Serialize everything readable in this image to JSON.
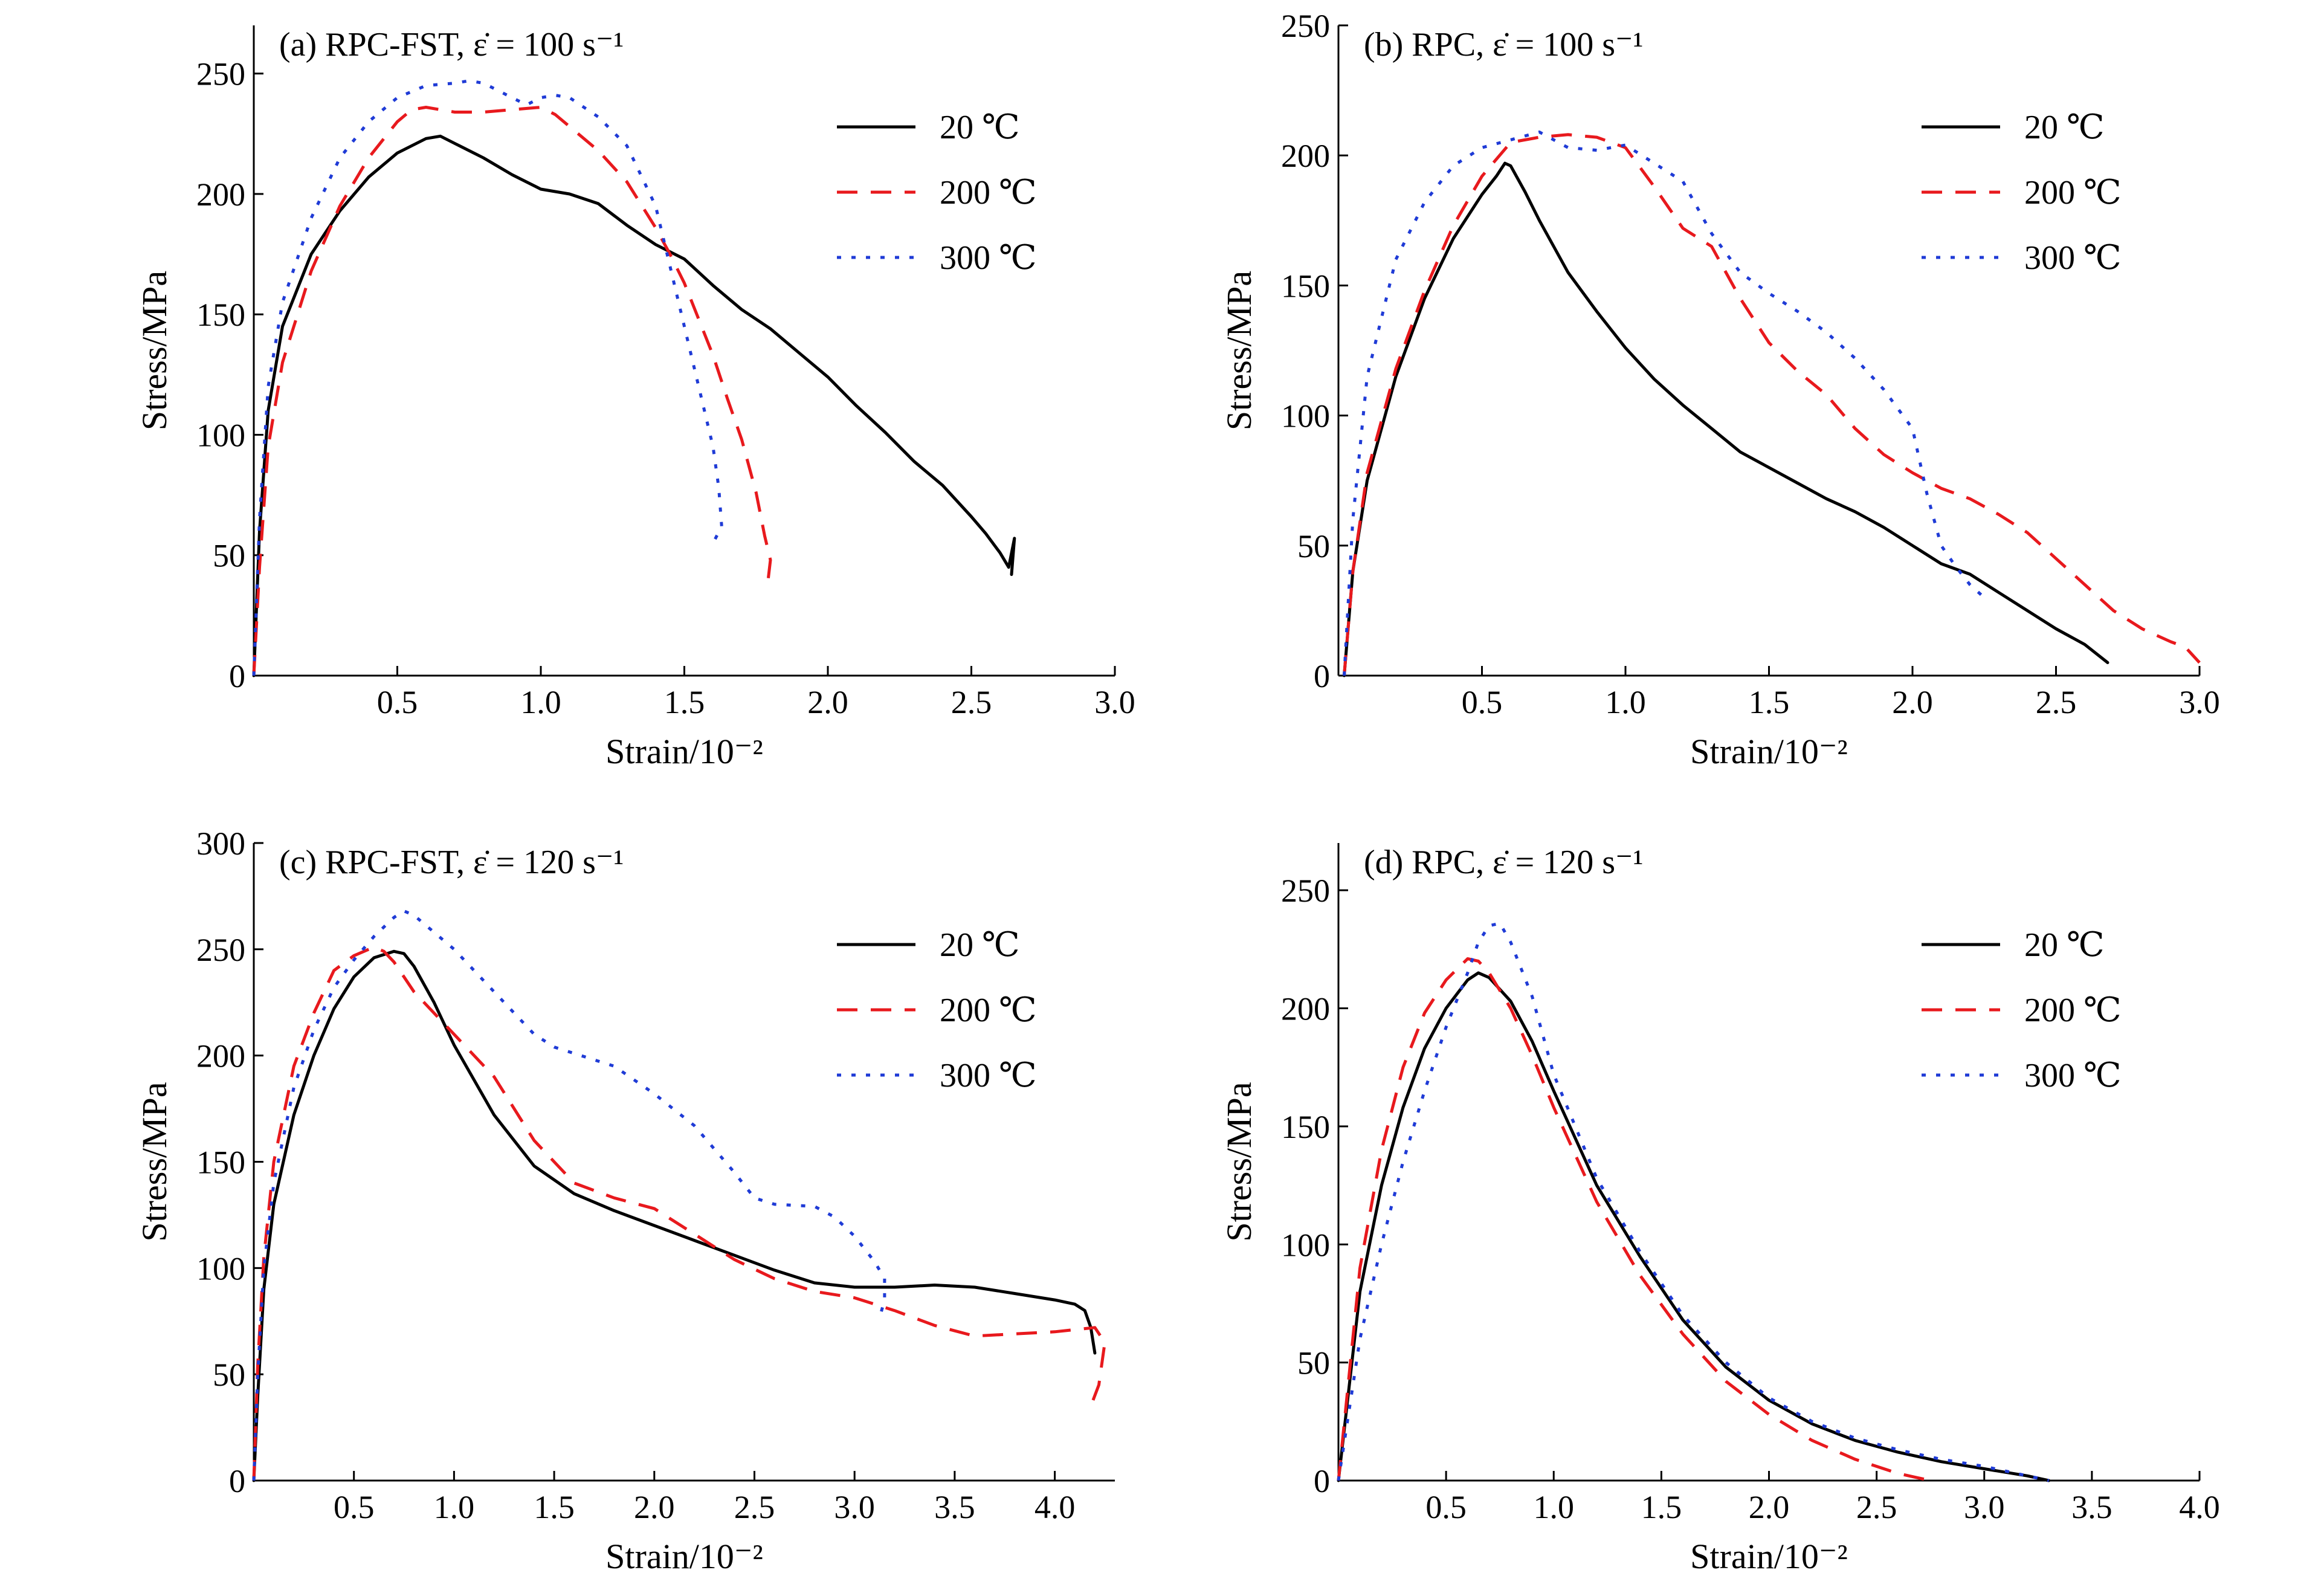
{
  "chart_data": [
    {
      "id": "a",
      "type": "line",
      "title": "(a) RPC-FST, ε̇ = 100 s⁻¹",
      "xlabel": "Strain/10⁻²",
      "ylabel": "Stress/MPa",
      "xlim": [
        0,
        3.0
      ],
      "ylim": [
        0,
        270
      ],
      "xticks": [
        0.5,
        1.0,
        1.5,
        2.0,
        2.5,
        3.0
      ],
      "xtick_labels": [
        "0.5",
        "1.0",
        "1.5",
        "2.0",
        "2.5",
        "3.0"
      ],
      "yticks": [
        0,
        50,
        100,
        150,
        200,
        250
      ],
      "ytick_labels": [
        "0",
        "50",
        "100",
        "150",
        "200",
        "250"
      ],
      "legend_position": "top-right",
      "series": [
        {
          "name": "20 ℃",
          "color": "#000000",
          "dash": "solid",
          "x": [
            0,
            0.02,
            0.05,
            0.1,
            0.2,
            0.3,
            0.4,
            0.5,
            0.6,
            0.65,
            0.7,
            0.8,
            0.9,
            1.0,
            1.1,
            1.2,
            1.3,
            1.4,
            1.5,
            1.6,
            1.7,
            1.8,
            1.9,
            2.0,
            2.1,
            2.2,
            2.3,
            2.4,
            2.5,
            2.55,
            2.6,
            2.63,
            2.65,
            2.64
          ],
          "y": [
            0,
            60,
            110,
            145,
            175,
            193,
            207,
            217,
            223,
            224,
            221,
            215,
            208,
            202,
            200,
            196,
            187,
            179,
            173,
            162,
            152,
            144,
            134,
            124,
            112,
            101,
            89,
            79,
            66,
            59,
            51,
            45,
            57,
            42
          ]
        },
        {
          "name": "200 ℃",
          "color": "#e8191d",
          "dash": "dashed",
          "x": [
            0,
            0.02,
            0.05,
            0.1,
            0.2,
            0.3,
            0.4,
            0.5,
            0.55,
            0.6,
            0.7,
            0.8,
            0.9,
            1.0,
            1.05,
            1.1,
            1.2,
            1.3,
            1.4,
            1.45,
            1.5,
            1.55,
            1.6,
            1.65,
            1.7,
            1.75,
            1.78,
            1.8,
            1.79
          ],
          "y": [
            0,
            45,
            95,
            130,
            168,
            195,
            215,
            230,
            235,
            236,
            234,
            234,
            235,
            236,
            233,
            228,
            218,
            205,
            186,
            175,
            163,
            148,
            133,
            115,
            98,
            76,
            58,
            48,
            38
          ]
        },
        {
          "name": "300 ℃",
          "color": "#1f3bd6",
          "dash": "dotted",
          "x": [
            0,
            0.02,
            0.05,
            0.1,
            0.2,
            0.3,
            0.4,
            0.5,
            0.6,
            0.7,
            0.75,
            0.8,
            0.9,
            0.95,
            1.0,
            1.05,
            1.1,
            1.2,
            1.3,
            1.4,
            1.45,
            1.5,
            1.55,
            1.6,
            1.62,
            1.63,
            1.6
          ],
          "y": [
            0,
            65,
            120,
            155,
            190,
            215,
            230,
            240,
            245,
            246,
            247,
            246,
            240,
            237,
            240,
            241,
            240,
            232,
            220,
            195,
            170,
            145,
            120,
            95,
            78,
            62,
            55
          ]
        }
      ]
    },
    {
      "id": "b",
      "type": "line",
      "title": "(b) RPC, ε̇ = 100 s⁻¹",
      "xlabel": "Strain/10⁻²",
      "ylabel": "Stress/MPa",
      "xlim": [
        0,
        3.0
      ],
      "ylim": [
        0,
        250
      ],
      "xticks": [
        0.5,
        1.0,
        1.5,
        2.0,
        2.5,
        3.0
      ],
      "xtick_labels": [
        "0.5",
        "1.0",
        "1.5",
        "2.0",
        "2.5",
        "3.0"
      ],
      "yticks": [
        0,
        50,
        100,
        150,
        200,
        250
      ],
      "ytick_labels": [
        "0",
        "50",
        "100",
        "150",
        "200",
        "250"
      ],
      "legend_position": "top-right",
      "series": [
        {
          "name": "20 ℃",
          "color": "#000000",
          "dash": "solid",
          "x": [
            0.02,
            0.05,
            0.1,
            0.2,
            0.3,
            0.4,
            0.5,
            0.55,
            0.58,
            0.6,
            0.65,
            0.7,
            0.8,
            0.9,
            1.0,
            1.1,
            1.2,
            1.3,
            1.4,
            1.5,
            1.6,
            1.7,
            1.8,
            1.9,
            2.0,
            2.1,
            2.2,
            2.3,
            2.4,
            2.5,
            2.6,
            2.68
          ],
          "y": [
            0,
            40,
            75,
            115,
            145,
            168,
            185,
            192,
            197,
            196,
            186,
            175,
            155,
            140,
            126,
            114,
            104,
            95,
            86,
            80,
            74,
            68,
            63,
            57,
            50,
            43,
            39,
            32,
            25,
            18,
            12,
            5
          ]
        },
        {
          "name": "200 ℃",
          "color": "#e8191d",
          "dash": "dashed",
          "x": [
            0.02,
            0.05,
            0.1,
            0.2,
            0.3,
            0.4,
            0.5,
            0.6,
            0.7,
            0.8,
            0.9,
            1.0,
            1.1,
            1.2,
            1.3,
            1.4,
            1.5,
            1.6,
            1.7,
            1.8,
            1.9,
            2.0,
            2.1,
            2.2,
            2.3,
            2.4,
            2.5,
            2.6,
            2.7,
            2.8,
            2.9,
            2.95,
            3.0
          ],
          "y": [
            0,
            40,
            78,
            118,
            148,
            173,
            192,
            205,
            207,
            208,
            207,
            203,
            188,
            172,
            165,
            145,
            128,
            117,
            108,
            95,
            85,
            78,
            72,
            68,
            62,
            55,
            45,
            35,
            25,
            18,
            13,
            11,
            5
          ]
        },
        {
          "name": "300 ℃",
          "color": "#1f3bd6",
          "dash": "dotted",
          "x": [
            0.02,
            0.05,
            0.1,
            0.2,
            0.3,
            0.4,
            0.5,
            0.6,
            0.7,
            0.8,
            0.9,
            1.0,
            1.1,
            1.2,
            1.3,
            1.4,
            1.5,
            1.6,
            1.7,
            1.8,
            1.9,
            2.0,
            2.05,
            2.1,
            2.15,
            2.2,
            2.25
          ],
          "y": [
            0,
            60,
            115,
            160,
            182,
            196,
            203,
            206,
            209,
            203,
            202,
            204,
            197,
            190,
            170,
            155,
            147,
            140,
            132,
            122,
            110,
            95,
            70,
            50,
            42,
            35,
            30
          ]
        }
      ]
    },
    {
      "id": "c",
      "type": "line",
      "title": "(c) RPC-FST, ε̇ = 120 s⁻¹",
      "xlabel": "Strain/10⁻²",
      "ylabel": "Stress/MPa",
      "xlim": [
        0,
        4.3
      ],
      "ylim": [
        0,
        300
      ],
      "xticks": [
        0.5,
        1.0,
        1.5,
        2.0,
        2.5,
        3.0,
        3.5,
        4.0
      ],
      "xtick_labels": [
        "0.5",
        "1.0",
        "1.5",
        "2.0",
        "2.5",
        "3.0",
        "3.5",
        "4.0"
      ],
      "yticks": [
        0,
        50,
        100,
        150,
        200,
        250,
        300
      ],
      "ytick_labels": [
        "0",
        "50",
        "100",
        "150",
        "200",
        "250",
        "300"
      ],
      "legend_position": "top-right",
      "series": [
        {
          "name": "20 ℃",
          "color": "#000000",
          "dash": "solid",
          "x": [
            0,
            0.02,
            0.05,
            0.1,
            0.2,
            0.3,
            0.4,
            0.5,
            0.6,
            0.7,
            0.75,
            0.8,
            0.9,
            1.0,
            1.2,
            1.4,
            1.6,
            1.8,
            2.0,
            2.2,
            2.4,
            2.6,
            2.8,
            3.0,
            3.2,
            3.4,
            3.6,
            3.8,
            4.0,
            4.1,
            4.15,
            4.18,
            4.2
          ],
          "y": [
            0,
            40,
            90,
            130,
            172,
            200,
            222,
            237,
            246,
            249,
            248,
            242,
            225,
            205,
            172,
            148,
            135,
            127,
            120,
            113,
            106,
            99,
            93,
            91,
            91,
            92,
            91,
            88,
            85,
            83,
            80,
            72,
            60
          ]
        },
        {
          "name": "200 ℃",
          "color": "#e8191d",
          "dash": "dashed",
          "x": [
            0,
            0.02,
            0.05,
            0.1,
            0.2,
            0.3,
            0.4,
            0.5,
            0.6,
            0.65,
            0.7,
            0.8,
            1.0,
            1.2,
            1.4,
            1.6,
            1.8,
            2.0,
            2.2,
            2.4,
            2.6,
            2.8,
            3.0,
            3.2,
            3.4,
            3.6,
            3.8,
            4.0,
            4.2,
            4.25,
            4.22,
            4.18
          ],
          "y": [
            0,
            55,
            105,
            150,
            195,
            220,
            240,
            247,
            251,
            249,
            244,
            230,
            210,
            190,
            160,
            140,
            133,
            128,
            116,
            104,
            95,
            89,
            86,
            80,
            73,
            68,
            69,
            70,
            72,
            65,
            45,
            35
          ]
        },
        {
          "name": "300 ℃",
          "color": "#1f3bd6",
          "dash": "dotted",
          "x": [
            0,
            0.02,
            0.05,
            0.1,
            0.2,
            0.3,
            0.4,
            0.5,
            0.6,
            0.7,
            0.75,
            0.8,
            0.9,
            1.0,
            1.2,
            1.4,
            1.5,
            1.6,
            1.8,
            2.0,
            2.2,
            2.4,
            2.5,
            2.6,
            2.8,
            2.9,
            3.0,
            3.1,
            3.15,
            3.15,
            3.12
          ],
          "y": [
            0,
            50,
            100,
            140,
            185,
            212,
            232,
            245,
            256,
            265,
            268,
            266,
            258,
            250,
            230,
            210,
            204,
            201,
            195,
            182,
            167,
            145,
            133,
            130,
            129,
            124,
            115,
            103,
            95,
            85,
            75
          ]
        }
      ]
    },
    {
      "id": "d",
      "type": "line",
      "title": "(d) RPC, ε̇ = 120 s⁻¹",
      "xlabel": "Strain/10⁻²",
      "ylabel": "Stress/MPa",
      "xlim": [
        0,
        4.0
      ],
      "ylim": [
        0,
        270
      ],
      "xticks": [
        0.5,
        1.0,
        1.5,
        2.0,
        2.5,
        3.0,
        3.5,
        4.0
      ],
      "xtick_labels": [
        "0.5",
        "1.0",
        "1.5",
        "2.0",
        "2.5",
        "3.0",
        "3.5",
        "4.0"
      ],
      "yticks": [
        0,
        50,
        100,
        150,
        200,
        250
      ],
      "ytick_labels": [
        "0",
        "50",
        "100",
        "150",
        "200",
        "250"
      ],
      "legend_position": "top-right",
      "series": [
        {
          "name": "20 ℃",
          "color": "#000000",
          "dash": "solid",
          "x": [
            0,
            0.05,
            0.1,
            0.2,
            0.3,
            0.4,
            0.5,
            0.6,
            0.65,
            0.7,
            0.8,
            0.9,
            1.0,
            1.2,
            1.4,
            1.6,
            1.8,
            2.0,
            2.2,
            2.4,
            2.6,
            2.8,
            3.0,
            3.2,
            3.3
          ],
          "y": [
            0,
            40,
            80,
            125,
            158,
            183,
            200,
            212,
            215,
            213,
            203,
            186,
            165,
            125,
            95,
            68,
            48,
            34,
            24,
            17,
            12,
            8,
            5,
            2,
            0
          ]
        },
        {
          "name": "200 ℃",
          "color": "#e8191d",
          "dash": "dashed",
          "x": [
            0,
            0.05,
            0.1,
            0.2,
            0.3,
            0.4,
            0.5,
            0.6,
            0.65,
            0.7,
            0.8,
            0.9,
            1.0,
            1.2,
            1.4,
            1.6,
            1.8,
            2.0,
            2.2,
            2.4,
            2.6,
            2.75
          ],
          "y": [
            0,
            45,
            90,
            140,
            175,
            198,
            212,
            221,
            220,
            215,
            200,
            180,
            158,
            118,
            87,
            62,
            42,
            28,
            17,
            9,
            3,
            0
          ]
        },
        {
          "name": "300 ℃",
          "color": "#1f3bd6",
          "dash": "dotted",
          "x": [
            0,
            0.05,
            0.1,
            0.2,
            0.3,
            0.4,
            0.5,
            0.6,
            0.65,
            0.7,
            0.75,
            0.8,
            0.9,
            1.0,
            1.2,
            1.4,
            1.6,
            1.8,
            2.0,
            2.2,
            2.4,
            2.6,
            2.8,
            3.0,
            3.2,
            3.3
          ],
          "y": [
            0,
            30,
            60,
            100,
            135,
            165,
            192,
            215,
            228,
            235,
            236,
            228,
            205,
            172,
            128,
            97,
            70,
            50,
            35,
            25,
            18,
            13,
            9,
            6,
            2,
            0
          ]
        }
      ]
    }
  ]
}
